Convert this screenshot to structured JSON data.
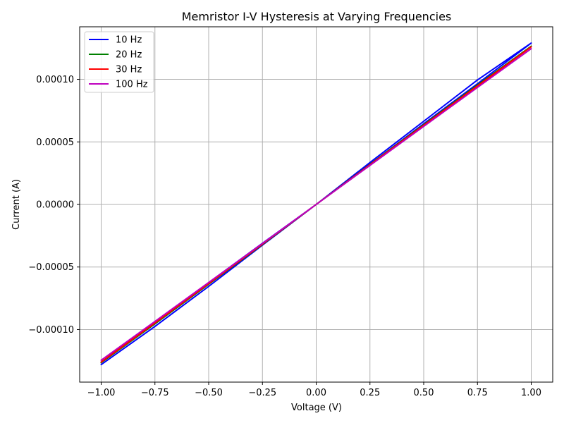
{
  "chart_data": {
    "type": "line",
    "title": "Memristor I-V Hysteresis at Varying Frequencies",
    "xlabel": "Voltage (V)",
    "ylabel": "Current (A)",
    "xlim": [
      -1.1,
      1.1
    ],
    "ylim": [
      -0.000142,
      0.000142
    ],
    "x_ticks": [
      -1.0,
      -0.75,
      -0.5,
      -0.25,
      0.0,
      0.25,
      0.5,
      0.75,
      1.0
    ],
    "x_tick_labels": [
      "−1.00",
      "−0.75",
      "−0.50",
      "−0.25",
      "0.00",
      "0.25",
      "0.50",
      "0.75",
      "1.00"
    ],
    "y_ticks": [
      -0.0001,
      -5e-05,
      0.0,
      5e-05,
      0.0001
    ],
    "y_tick_labels": [
      "−0.00010",
      "−0.00005",
      "0.00000",
      "0.00005",
      "0.00010"
    ],
    "grid": true,
    "legend_position": "top-left",
    "series": [
      {
        "name": "10 Hz",
        "color": "#0000ff",
        "x": [
          -1.0,
          -0.75,
          -0.5,
          -0.25,
          0.0,
          0.25,
          0.5,
          0.75,
          1.0,
          0.75,
          0.5,
          0.25,
          0.0,
          -0.25,
          -0.5,
          -0.75,
          -1.0
        ],
        "y": [
          -0.000128,
          -9.75e-05,
          -6.55e-05,
          -3.25e-05,
          0.0,
          3.35e-05,
          6.65e-05,
          9.95e-05,
          0.000129,
          9.65e-05,
          6.45e-05,
          3.2e-05,
          0.0,
          -3.1e-05,
          -6.25e-05,
          -9.4e-05,
          -0.000126
        ]
      },
      {
        "name": "20 Hz",
        "color": "#008000",
        "x": [
          -1.0,
          -0.75,
          -0.5,
          -0.25,
          0.0,
          0.25,
          0.5,
          0.75,
          1.0,
          0.75,
          0.5,
          0.25,
          0.0,
          -0.25,
          -0.5,
          -0.75,
          -1.0
        ],
        "y": [
          -0.0001265,
          -9.55e-05,
          -6.38e-05,
          -3.2e-05,
          0.0,
          3.2e-05,
          6.38e-05,
          9.55e-05,
          0.0001265,
          9.5e-05,
          6.34e-05,
          3.16e-05,
          0.0,
          -3.16e-05,
          -6.34e-05,
          -9.5e-05,
          -0.0001265
        ]
      },
      {
        "name": "30 Hz",
        "color": "#ff0000",
        "x": [
          -1.0,
          -0.75,
          -0.5,
          -0.25,
          0.0,
          0.25,
          0.5,
          0.75,
          1.0,
          0.75,
          0.5,
          0.25,
          0.0,
          -0.25,
          -0.5,
          -0.75,
          -1.0
        ],
        "y": [
          -0.000126,
          -9.48e-05,
          -6.33e-05,
          -3.17e-05,
          0.0,
          3.17e-05,
          6.33e-05,
          9.48e-05,
          0.000126,
          9.45e-05,
          6.3e-05,
          3.15e-05,
          0.0,
          -3.15e-05,
          -6.3e-05,
          -9.45e-05,
          -0.000126
        ]
      },
      {
        "name": "100 Hz",
        "color": "#bf00bf",
        "x": [
          -1.0,
          -0.75,
          -0.5,
          -0.25,
          0.0,
          0.25,
          0.5,
          0.75,
          1.0,
          0.75,
          0.5,
          0.25,
          0.0,
          -0.25,
          -0.5,
          -0.75,
          -1.0
        ],
        "y": [
          -0.0001245,
          -9.35e-05,
          -6.24e-05,
          -3.12e-05,
          0.0,
          3.12e-05,
          6.24e-05,
          9.35e-05,
          0.0001245,
          9.35e-05,
          6.24e-05,
          3.12e-05,
          0.0,
          -3.12e-05,
          -6.24e-05,
          -9.35e-05,
          -0.0001245
        ]
      }
    ]
  }
}
